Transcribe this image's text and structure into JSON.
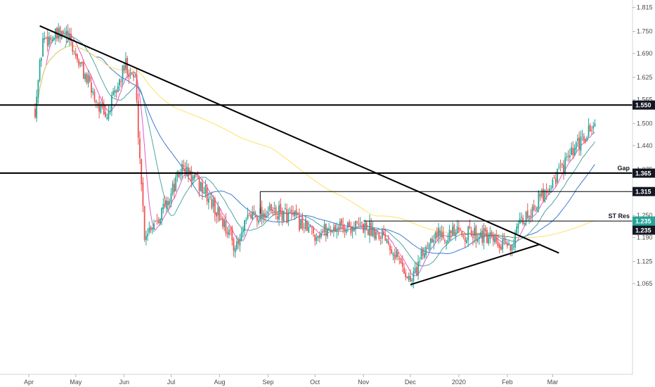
{
  "chart_data": {
    "type": "candlestick",
    "title": "",
    "xlabel": "",
    "ylabel": "",
    "ylim": [
      1.03,
      1.82
    ],
    "y_ticks": [
      "1.815",
      "1.750",
      "1.690",
      "1.625",
      "1.565",
      "1.500",
      "1.440",
      "1.375",
      "1.315",
      "1.250",
      "1.190",
      "1.125",
      "1.065"
    ],
    "x_ticks": [
      "Apr",
      "May",
      "Jun",
      "Jul",
      "Aug",
      "Sep",
      "Oct",
      "Nov",
      "Dec",
      "2020",
      "Feb",
      "Mar"
    ],
    "grid": false,
    "colors": {
      "up": "#26a69a",
      "down": "#ef5350",
      "ma_fast": "#e05ac8",
      "ma_mid": "#4fa3a5",
      "ma_slow": "#3d7bd6",
      "ma_long": "#ffe066",
      "lines": "#000000",
      "price_tag": "#26a69a"
    },
    "horizontal_levels": [
      {
        "price": 1.55,
        "tag": "1.550",
        "label": ""
      },
      {
        "price": 1.365,
        "tag": "1.365",
        "label": "Gap"
      },
      {
        "price": 1.315,
        "tag": "1.315",
        "label": ""
      },
      {
        "price": 1.235,
        "tag": "1.235",
        "label": "ST Res"
      }
    ],
    "trendlines": [
      {
        "from": [
          "Apr 08",
          1.765
        ],
        "to": [
          "Mar 05",
          1.148
        ]
      },
      {
        "from": [
          "Dec 01",
          1.062
        ],
        "to": [
          "Feb 22",
          1.172
        ]
      }
    ],
    "last_price": {
      "value": 1.235,
      "tag": "1.235"
    },
    "series": [
      {
        "type": "moving_average",
        "values": []
      },
      {
        "type": "moving_average",
        "values": []
      },
      {
        "type": "moving_average",
        "values": []
      },
      {
        "type": "moving_average",
        "values": []
      }
    ],
    "anchors": [
      {
        "date": "Mar 28",
        "close": 1.5
      },
      {
        "date": "Apr 05",
        "close": 1.54
      },
      {
        "date": "Apr 10",
        "close": 1.73
      },
      {
        "date": "Apr 25",
        "close": 1.74
      },
      {
        "date": "May 08",
        "close": 1.62
      },
      {
        "date": "May 20",
        "close": 1.51
      },
      {
        "date": "Jun 02",
        "close": 1.66
      },
      {
        "date": "Jun 08",
        "close": 1.62
      },
      {
        "date": "Jun 14",
        "close": 1.2
      },
      {
        "date": "Jun 28",
        "close": 1.28
      },
      {
        "date": "Jul 08",
        "close": 1.38
      },
      {
        "date": "Jul 20",
        "close": 1.33
      },
      {
        "date": "Aug 05",
        "close": 1.22
      },
      {
        "date": "Aug 12",
        "close": 1.16
      },
      {
        "date": "Aug 20",
        "close": 1.25
      },
      {
        "date": "Sep 01",
        "close": 1.26
      },
      {
        "date": "Sep 15",
        "close": 1.25
      },
      {
        "date": "Oct 01",
        "close": 1.2
      },
      {
        "date": "Oct 15",
        "close": 1.22
      },
      {
        "date": "Nov 01",
        "close": 1.22
      },
      {
        "date": "Nov 15",
        "close": 1.2
      },
      {
        "date": "Dec 01",
        "close": 1.07
      },
      {
        "date": "Dec 15",
        "close": 1.2
      },
      {
        "date": "Jan 01",
        "close": 1.2
      },
      {
        "date": "Jan 15",
        "close": 1.2
      },
      {
        "date": "Jan 28",
        "close": 1.16
      },
      {
        "date": "Feb 05",
        "close": 1.18
      },
      {
        "date": "Feb 10",
        "close": 1.23
      }
    ]
  }
}
